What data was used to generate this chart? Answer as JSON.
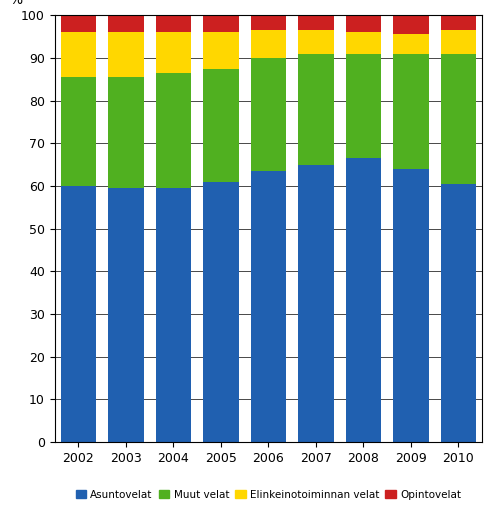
{
  "years": [
    2002,
    2003,
    2004,
    2005,
    2006,
    2007,
    2008,
    2009,
    2010
  ],
  "asuntovelat": [
    60.0,
    59.5,
    59.5,
    61.0,
    63.5,
    65.0,
    66.5,
    64.0,
    60.5
  ],
  "muutvelat": [
    25.5,
    26.0,
    27.0,
    26.5,
    26.5,
    26.0,
    24.5,
    27.0,
    30.5
  ],
  "elinkeinotoiminta": [
    10.5,
    10.5,
    9.5,
    8.5,
    6.5,
    5.5,
    5.0,
    4.5,
    5.5
  ],
  "opintovelat": [
    4.0,
    4.0,
    4.0,
    4.0,
    3.5,
    3.5,
    4.0,
    4.5,
    3.5
  ],
  "colors": {
    "asuntovelat": "#2060b0",
    "muutvelat": "#50b020",
    "elinkeinotoiminta": "#ffd700",
    "opintovelat": "#cc2020"
  },
  "labels": {
    "asuntovelat": "Asuntovelat",
    "muutvelat": "Muut velat",
    "elinkeinotoiminta": "Elinkeinotoiminnan velat",
    "opintovelat": "Opintovelat"
  },
  "ylabel": "%",
  "ylim": [
    0,
    100
  ],
  "yticks": [
    0,
    10,
    20,
    30,
    40,
    50,
    60,
    70,
    80,
    90,
    100
  ],
  "background_color": "#ffffff",
  "bar_width": 0.75
}
